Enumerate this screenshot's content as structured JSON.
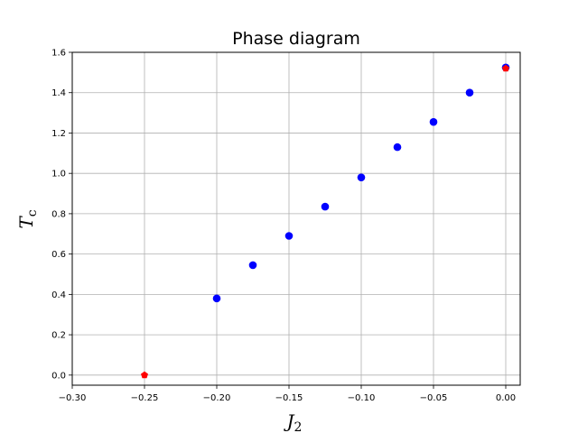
{
  "chart_data": {
    "type": "scatter",
    "title": "Phase diagram",
    "xlabel": "J",
    "xlabel_sub": "2",
    "ylabel": "T",
    "ylabel_sub": "c",
    "xlim": [
      -0.3,
      0.01
    ],
    "ylim": [
      -0.05,
      1.6
    ],
    "xticks": [
      -0.3,
      -0.25,
      -0.2,
      -0.15,
      -0.1,
      -0.05,
      0.0
    ],
    "xtick_labels": [
      "−0.30",
      "−0.25",
      "−0.20",
      "−0.15",
      "−0.10",
      "−0.05",
      "0.00"
    ],
    "yticks": [
      0.0,
      0.2,
      0.4,
      0.6,
      0.8,
      1.0,
      1.2,
      1.4,
      1.6
    ],
    "ytick_labels": [
      "0.0",
      "0.2",
      "0.4",
      "0.6",
      "0.8",
      "1.0",
      "1.2",
      "1.4",
      "1.6"
    ],
    "grid": true,
    "series": [
      {
        "color": "#0000ff",
        "marker": "circle",
        "x": [
          -0.2,
          -0.175,
          -0.15,
          -0.125,
          -0.1,
          -0.075,
          -0.05,
          -0.025,
          0.0
        ],
        "y": [
          0.38,
          0.545,
          0.69,
          0.835,
          0.98,
          1.13,
          1.255,
          1.4,
          1.525
        ]
      },
      {
        "color": "#ff0000",
        "marker": "pentagon",
        "x": [
          -0.25,
          0.0
        ],
        "y": [
          0.0,
          1.52
        ]
      }
    ]
  }
}
